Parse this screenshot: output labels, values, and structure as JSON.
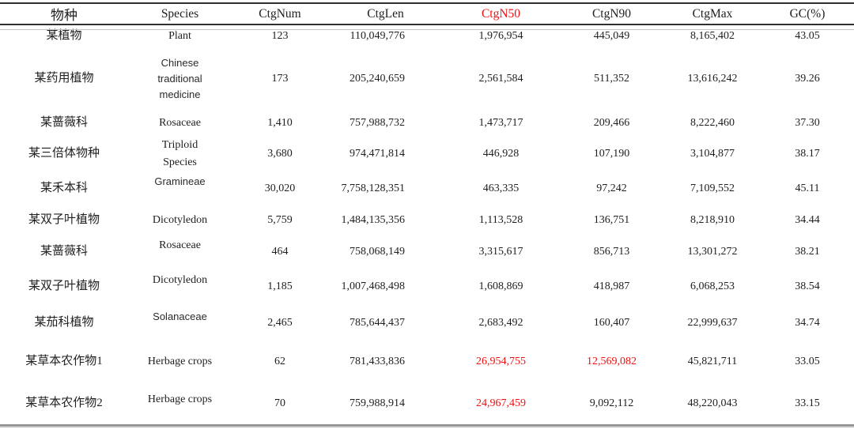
{
  "colors": {
    "text": "#1f1f1f",
    "highlight_red": "#ee1111",
    "rule_dark": "#2f2f2f",
    "rule_gray": "#8c8c8c"
  },
  "table": {
    "columns": [
      {
        "key": "name",
        "label": "物种"
      },
      {
        "key": "species",
        "label": "Species"
      },
      {
        "key": "ctgNum",
        "label": "CtgNum"
      },
      {
        "key": "ctgLen",
        "label": "CtgLen"
      },
      {
        "key": "ctgN50",
        "label": "CtgN50",
        "highlight": true
      },
      {
        "key": "ctgN90",
        "label": "CtgN90"
      },
      {
        "key": "ctgMax",
        "label": "CtgMax"
      },
      {
        "key": "gc",
        "label": "GC(%)"
      }
    ],
    "rows": [
      {
        "name": "某植物",
        "species": "Plant",
        "ctgNum": "123",
        "ctgLen": "110,049,776",
        "ctgN50": "1,976,954",
        "ctgN90": "445,049",
        "ctgMax": "8,165,402",
        "gc": "43.05"
      },
      {
        "name": "某药用植物",
        "species": "Chinese\ntraditional\nmedicine",
        "ctgNum": "173",
        "ctgLen": "205,240,659",
        "ctgN50": "2,561,584",
        "ctgN90": "511,352",
        "ctgMax": "13,616,242",
        "gc": "39.26"
      },
      {
        "name": "某蔷薇科",
        "species": "Rosaceae",
        "ctgNum": "1,410",
        "ctgLen": "757,988,732",
        "ctgN50": "1,473,717",
        "ctgN90": "209,466",
        "ctgMax": "8,222,460",
        "gc": "37.30"
      },
      {
        "name": "某三倍体物种",
        "species": "Triploid\nSpecies",
        "ctgNum": "3,680",
        "ctgLen": "974,471,814",
        "ctgN50": "446,928",
        "ctgN90": "107,190",
        "ctgMax": "3,104,877",
        "gc": "38.17"
      },
      {
        "name": "某禾本科",
        "species": "Gramineae",
        "ctgNum": "30,020",
        "ctgLen": "7,758,128,351",
        "ctgN50": "463,335",
        "ctgN90": "97,242",
        "ctgMax": "7,109,552",
        "gc": "45.11"
      },
      {
        "name": "某双子叶植物",
        "species": "Dicotyledon",
        "ctgNum": "5,759",
        "ctgLen": "1,484,135,356",
        "ctgN50": "1,113,528",
        "ctgN90": "136,751",
        "ctgMax": "8,218,910",
        "gc": "34.44"
      },
      {
        "name": "某蔷薇科",
        "species": "Rosaceae",
        "ctgNum": "464",
        "ctgLen": "758,068,149",
        "ctgN50": "3,315,617",
        "ctgN90": "856,713",
        "ctgMax": "13,301,272",
        "gc": "38.21"
      },
      {
        "name": "某双子叶植物",
        "species": "Dicotyledon",
        "ctgNum": "1,185",
        "ctgLen": "1,007,468,498",
        "ctgN50": "1,608,869",
        "ctgN90": "418,987",
        "ctgMax": "6,068,253",
        "gc": "38.54"
      },
      {
        "name": "某茄科植物",
        "species": "Solanaceae",
        "ctgNum": "2,465",
        "ctgLen": "785,644,437",
        "ctgN50": "2,683,492",
        "ctgN90": "160,407",
        "ctgMax": "22,999,637",
        "gc": "34.74"
      },
      {
        "name": "某草本农作物1",
        "species": "Herbage crops",
        "ctgNum": "62",
        "ctgLen": "781,433,836",
        "ctgN50": "26,954,755",
        "ctgN90": "12,569,082",
        "ctgMax": "45,821,711",
        "gc": "33.05",
        "red": [
          "ctgN50",
          "ctgN90"
        ]
      },
      {
        "name": "某草本农作物2",
        "species": "Herbage crops",
        "ctgNum": "70",
        "ctgLen": "759,988,914",
        "ctgN50": "24,967,459",
        "ctgN90": "9,092,112",
        "ctgMax": "48,220,043",
        "gc": "33.15",
        "red": [
          "ctgN50"
        ]
      }
    ]
  }
}
